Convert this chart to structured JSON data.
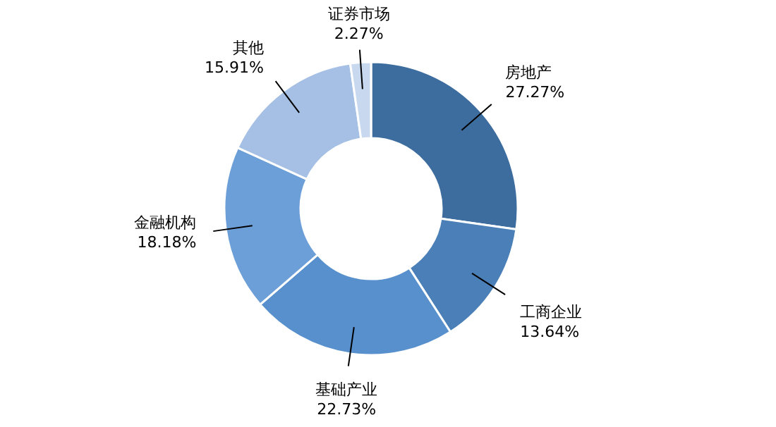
{
  "chart_data": {
    "type": "donut",
    "categories": [
      "房地产",
      "工商企业",
      "基础产业",
      "金融机构",
      "其他",
      "证券市场"
    ],
    "values": [
      27.27,
      13.64,
      22.73,
      18.18,
      15.91,
      2.27
    ],
    "value_labels": [
      "27.27%",
      "13.64%",
      "22.73%",
      "18.18%",
      "15.91%",
      "2.27%"
    ],
    "colors": [
      "#3d6c9e",
      "#4a7fb7",
      "#5790cc",
      "#6c9ed8",
      "#a5c0e4",
      "#c8d8ee"
    ]
  }
}
